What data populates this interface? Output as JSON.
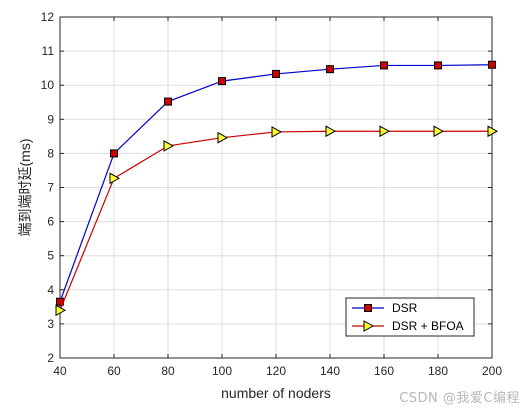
{
  "chart_data": {
    "type": "line",
    "x": [
      40,
      60,
      80,
      100,
      120,
      140,
      160,
      180,
      200
    ],
    "series": [
      {
        "name": "DSR",
        "values": [
          3.65,
          8.0,
          9.52,
          10.12,
          10.33,
          10.47,
          10.58,
          10.58,
          10.6
        ],
        "line_color": "#0000cc",
        "marker": "square",
        "marker_fill": "#cc0000"
      },
      {
        "name": "DSR + BFOA",
        "values": [
          3.4,
          7.27,
          8.22,
          8.46,
          8.63,
          8.65,
          8.65,
          8.65,
          8.65
        ],
        "line_color": "#cc0000",
        "marker": "triangle-right",
        "marker_fill": "#ffff33"
      }
    ],
    "xlabel": "number of noders",
    "ylabel": "端到端时延(ms)",
    "xlim": [
      40,
      200
    ],
    "ylim": [
      2,
      12
    ],
    "xticks": [
      40,
      60,
      80,
      100,
      120,
      140,
      160,
      180,
      200
    ],
    "yticks": [
      2,
      3,
      4,
      5,
      6,
      7,
      8,
      9,
      10,
      11,
      12
    ],
    "grid": true,
    "legend_position": "bottom-right"
  },
  "watermark": "CSDN @我爱C编程"
}
